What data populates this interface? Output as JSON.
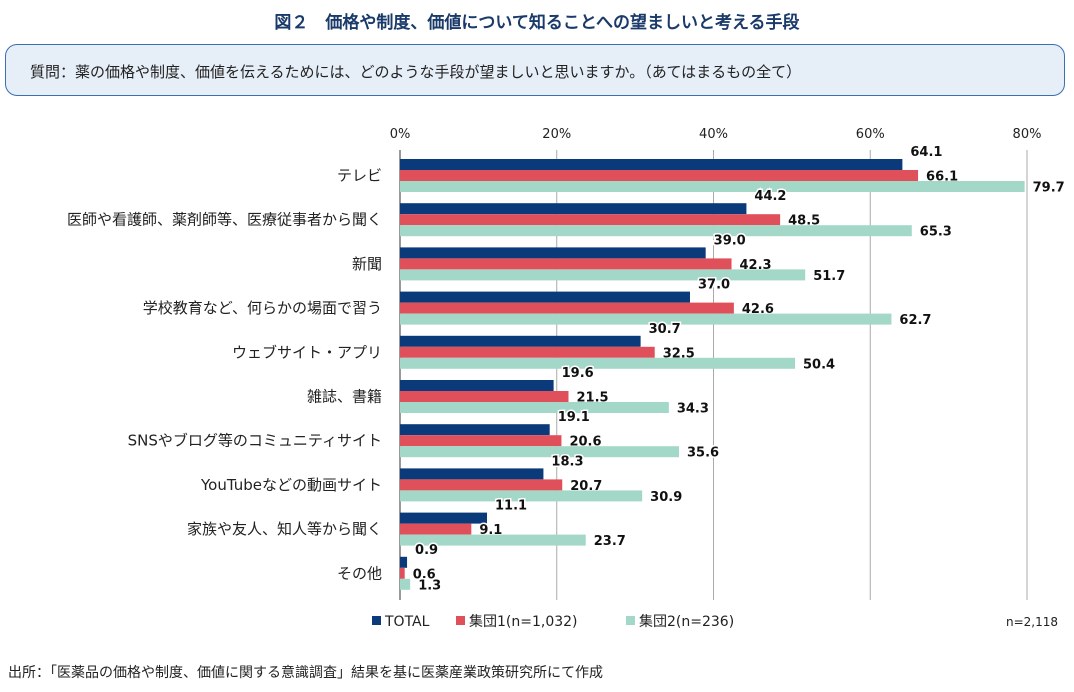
{
  "title": "図２　価格や制度、価値について知ることへの望ましいと考える手段",
  "question": "質問：薬の価格や制度、価値を伝えるためには、どのような手段が望ましいと思いますか。（あてはまるもの全て）",
  "source": "出所：「医薬品の価格や制度、価値に関する意識調査」結果を基に医薬産業政策研究所にて作成",
  "chart_data": {
    "type": "bar",
    "orientation": "horizontal",
    "categories": [
      "テレビ",
      "医師や看護師、薬剤師等、医療従事者から聞く",
      "新聞",
      "学校教育など、何らかの場面で習う",
      "ウェブサイト・アプリ",
      "雑誌、書籍",
      "SNSやブログ等のコミュニティサイト",
      "YouTubeなどの動画サイト",
      "家族や友人、知人等から聞く",
      "その他"
    ],
    "series": [
      {
        "name": "TOTAL",
        "color": "#0a3a7a",
        "values": [
          64.1,
          44.2,
          39.0,
          37.0,
          30.7,
          19.6,
          19.1,
          18.3,
          11.1,
          0.9
        ],
        "labels": [
          "64.1",
          "44.2",
          "39.0",
          "37.0",
          "30.7",
          "19.6",
          "19.1",
          "18.3",
          "11.1",
          "0.9"
        ]
      },
      {
        "name": "集団1(n=1,032)",
        "color": "#e0505a",
        "values": [
          66.1,
          48.5,
          42.3,
          42.6,
          32.5,
          21.5,
          20.6,
          20.7,
          9.1,
          0.6
        ],
        "labels": [
          "66.1",
          "48.5",
          "42.3",
          "42.6",
          "32.5",
          "21.5",
          "20.6",
          "20.7",
          "9.1",
          "0.6"
        ]
      },
      {
        "name": "集団2(n=236)",
        "color": "#a3d8c8",
        "values": [
          79.7,
          65.3,
          51.7,
          62.7,
          50.4,
          34.3,
          35.6,
          30.9,
          23.7,
          1.3
        ],
        "labels": [
          "79.7",
          "65.3",
          "51.7",
          "62.7",
          "50.4",
          "34.3",
          "35.6",
          "30.9",
          "23.7",
          "1.3"
        ]
      }
    ],
    "xlim": [
      0,
      80
    ],
    "xticks": [
      "0%",
      "20%",
      "40%",
      "60%",
      "80%"
    ],
    "xtick_values": [
      0,
      20,
      40,
      60,
      80
    ],
    "grid": true,
    "legend_position": "bottom",
    "note": "n=2,118"
  }
}
